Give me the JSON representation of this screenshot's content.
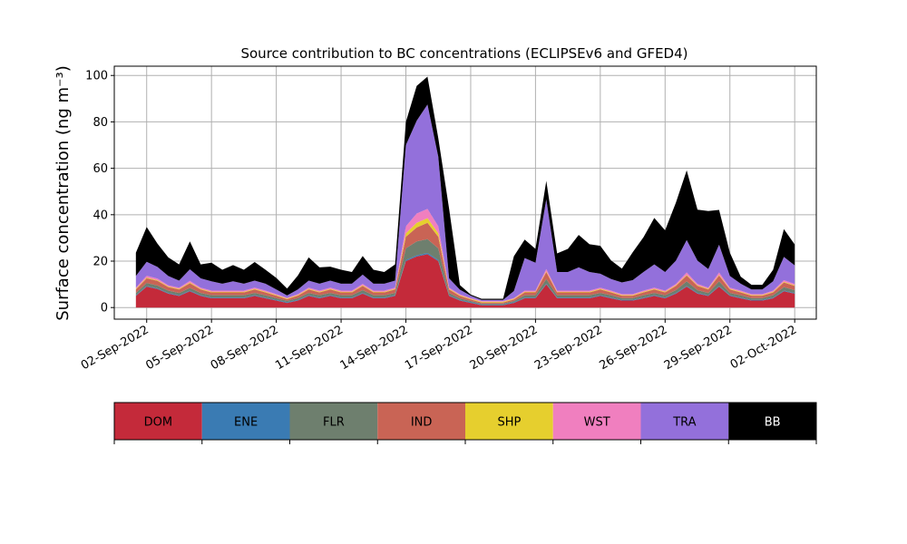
{
  "chart_data": {
    "type": "area",
    "stacked": true,
    "title": "Source contribution to BC concentrations (ECLIPSEv6 and GFED4)",
    "ylabel": "Surface concentration (ng m⁻³)",
    "xlabel": "",
    "ylim": [
      -5,
      104
    ],
    "xlim": [
      "2022-08-31T12:00",
      "2022-10-03T00:00"
    ],
    "grid": true,
    "x_tick_labels": [
      "02-Sep-2022",
      "05-Sep-2022",
      "08-Sep-2022",
      "11-Sep-2022",
      "14-Sep-2022",
      "17-Sep-2022",
      "20-Sep-2022",
      "23-Sep-2022",
      "26-Sep-2022",
      "29-Sep-2022",
      "02-Oct-2022"
    ],
    "x_ticks": [
      "2022-09-02",
      "2022-09-05",
      "2022-09-08",
      "2022-09-11",
      "2022-09-14",
      "2022-09-17",
      "2022-09-20",
      "2022-09-23",
      "2022-09-26",
      "2022-09-29",
      "2022-10-02"
    ],
    "y_ticks": [
      0,
      20,
      40,
      60,
      80,
      100
    ],
    "legend_position": "below",
    "x": [
      "2022-09-01T12:00",
      "2022-09-02T00:00",
      "2022-09-02T12:00",
      "2022-09-03T00:00",
      "2022-09-03T12:00",
      "2022-09-04T00:00",
      "2022-09-04T12:00",
      "2022-09-05T00:00",
      "2022-09-05T12:00",
      "2022-09-06T00:00",
      "2022-09-06T12:00",
      "2022-09-07T00:00",
      "2022-09-07T12:00",
      "2022-09-08T00:00",
      "2022-09-08T12:00",
      "2022-09-09T00:00",
      "2022-09-09T12:00",
      "2022-09-10T00:00",
      "2022-09-10T12:00",
      "2022-09-11T00:00",
      "2022-09-11T12:00",
      "2022-09-12T00:00",
      "2022-09-12T12:00",
      "2022-09-13T00:00",
      "2022-09-13T12:00",
      "2022-09-14T00:00",
      "2022-09-14T12:00",
      "2022-09-15T00:00",
      "2022-09-15T12:00",
      "2022-09-16T00:00",
      "2022-09-16T12:00",
      "2022-09-17T00:00",
      "2022-09-17T12:00",
      "2022-09-18T00:00",
      "2022-09-18T12:00",
      "2022-09-19T00:00",
      "2022-09-19T12:00",
      "2022-09-20T00:00",
      "2022-09-20T12:00",
      "2022-09-21T00:00",
      "2022-09-21T12:00",
      "2022-09-22T00:00",
      "2022-09-22T12:00",
      "2022-09-23T00:00",
      "2022-09-23T12:00",
      "2022-09-24T00:00",
      "2022-09-24T12:00",
      "2022-09-25T00:00",
      "2022-09-25T12:00",
      "2022-09-26T00:00",
      "2022-09-26T12:00",
      "2022-09-27T00:00",
      "2022-09-27T12:00",
      "2022-09-28T00:00",
      "2022-09-28T12:00",
      "2022-09-29T00:00",
      "2022-09-29T12:00",
      "2022-09-30T00:00",
      "2022-09-30T12:00",
      "2022-10-01T00:00",
      "2022-10-01T12:00",
      "2022-10-02T00:00"
    ],
    "series": [
      {
        "name": "DOM",
        "color": "#c42a3a",
        "values": [
          5,
          9,
          8,
          6,
          5,
          7,
          5,
          4,
          4,
          4,
          4,
          5,
          4,
          3,
          2,
          3,
          5,
          4,
          5,
          4,
          4,
          6,
          4,
          4,
          5,
          20,
          22,
          23,
          20,
          5,
          3,
          2,
          1,
          1,
          1,
          2,
          4,
          4,
          10,
          4,
          4,
          4,
          4,
          5,
          4,
          3,
          3,
          4,
          5,
          4,
          6,
          9,
          6,
          5,
          9,
          5,
          4,
          3,
          3,
          4,
          7,
          6
        ]
      },
      {
        "name": "ENE",
        "color": "#3a7bb3",
        "values": [
          0.3,
          0.3,
          0.3,
          0.3,
          0.3,
          0.3,
          0.3,
          0.3,
          0.3,
          0.3,
          0.3,
          0.3,
          0.3,
          0.3,
          0.3,
          0.3,
          0.3,
          0.3,
          0.3,
          0.3,
          0.3,
          0.3,
          0.3,
          0.3,
          0.3,
          0.5,
          0.5,
          0.5,
          0.5,
          0.3,
          0.3,
          0.3,
          0.3,
          0.3,
          0.3,
          0.3,
          0.3,
          0.3,
          0.3,
          0.3,
          0.3,
          0.3,
          0.3,
          0.3,
          0.3,
          0.3,
          0.3,
          0.3,
          0.3,
          0.3,
          0.3,
          0.3,
          0.3,
          0.3,
          0.3,
          0.3,
          0.3,
          0.3,
          0.3,
          0.3,
          0.3,
          0.3
        ]
      },
      {
        "name": "FLR",
        "color": "#6e7f6e",
        "values": [
          1,
          1.3,
          1.2,
          1,
          1,
          1.2,
          1,
          1,
          1,
          1,
          1,
          1,
          1,
          0.8,
          0.6,
          0.8,
          1,
          1,
          1,
          1,
          1,
          1.2,
          1,
          1,
          1,
          5,
          6,
          6,
          5,
          1,
          0.7,
          0.5,
          0.4,
          0.4,
          0.4,
          0.5,
          1,
          1,
          2,
          1,
          1,
          1,
          1,
          1,
          1,
          0.8,
          0.8,
          1,
          1,
          1,
          1.2,
          2,
          1.2,
          1,
          2,
          1,
          1,
          0.8,
          0.8,
          1,
          1.5,
          1.2
        ]
      },
      {
        "name": "IND",
        "color": "#c96455",
        "values": [
          1.5,
          2,
          2,
          1.5,
          1.5,
          2,
          1.5,
          1.2,
          1.2,
          1.2,
          1.2,
          1.5,
          1.2,
          1,
          0.7,
          1,
          1.5,
          1.2,
          1.5,
          1.2,
          1.2,
          1.8,
          1.2,
          1.2,
          1.5,
          5,
          6,
          7,
          5,
          1.5,
          1,
          0.7,
          0.5,
          0.5,
          0.5,
          0.7,
          1.2,
          1.2,
          3,
          1.2,
          1.2,
          1.2,
          1.2,
          1.5,
          1.2,
          1,
          1,
          1.2,
          1.5,
          1.2,
          1.8,
          2.5,
          1.8,
          1.5,
          2.5,
          1.5,
          1.2,
          1,
          1,
          1.2,
          2,
          1.8
        ]
      },
      {
        "name": "SHP",
        "color": "#e6cf2e",
        "values": [
          0.3,
          0.3,
          0.3,
          0.3,
          0.3,
          0.3,
          0.3,
          0.3,
          0.3,
          0.3,
          0.3,
          0.3,
          0.3,
          0.3,
          0.3,
          0.3,
          0.3,
          0.3,
          0.3,
          0.3,
          0.3,
          0.3,
          0.3,
          0.3,
          0.3,
          1.5,
          2,
          2,
          1.5,
          0.3,
          0.3,
          0.3,
          0.3,
          0.3,
          0.3,
          0.3,
          0.3,
          0.3,
          0.3,
          0.3,
          0.3,
          0.3,
          0.3,
          0.3,
          0.3,
          0.3,
          0.3,
          0.3,
          0.3,
          0.3,
          0.3,
          0.3,
          0.3,
          0.3,
          0.3,
          0.3,
          0.3,
          0.3,
          0.3,
          0.3,
          0.3,
          0.3
        ]
      },
      {
        "name": "WST",
        "color": "#f07fbf",
        "values": [
          0.5,
          0.8,
          0.7,
          0.5,
          0.5,
          0.7,
          0.5,
          0.5,
          0.5,
          0.5,
          0.5,
          0.5,
          0.5,
          0.4,
          0.3,
          0.4,
          0.5,
          0.5,
          0.5,
          0.5,
          0.5,
          0.6,
          0.5,
          0.5,
          0.5,
          3,
          4,
          4,
          3,
          0.5,
          0.4,
          0.3,
          0.3,
          0.3,
          0.3,
          0.3,
          0.5,
          0.5,
          1,
          0.5,
          0.5,
          0.5,
          0.5,
          0.5,
          0.5,
          0.4,
          0.4,
          0.5,
          0.5,
          0.5,
          0.6,
          1,
          0.6,
          0.5,
          1,
          0.5,
          0.5,
          0.4,
          0.4,
          0.5,
          0.7,
          0.6
        ]
      },
      {
        "name": "TRA",
        "color": "#9370db",
        "values": [
          5,
          6,
          5,
          4,
          3,
          5,
          4,
          4,
          3,
          4,
          3,
          3,
          3,
          2,
          1,
          2,
          3,
          3,
          3,
          3,
          3,
          4,
          3,
          3,
          3,
          35,
          40,
          45,
          30,
          4,
          2,
          1,
          0.5,
          0.5,
          0.5,
          3,
          14,
          12,
          30,
          8,
          8,
          10,
          8,
          6,
          5,
          5,
          6,
          8,
          10,
          8,
          10,
          14,
          10,
          8,
          12,
          5,
          3,
          2,
          2,
          4,
          10,
          8
        ]
      },
      {
        "name": "BB",
        "color": "#000000",
        "values": [
          10,
          15,
          10,
          8,
          7,
          12,
          6,
          8,
          6,
          7,
          6,
          8,
          6,
          5,
          3,
          6,
          10,
          7,
          6,
          6,
          5,
          8,
          6,
          5,
          7,
          10,
          15,
          12,
          8,
          30,
          2,
          0.5,
          0.5,
          0.5,
          0.5,
          15,
          8,
          6,
          8,
          8,
          10,
          14,
          12,
          12,
          8,
          6,
          12,
          15,
          20,
          18,
          25,
          30,
          22,
          25,
          15,
          10,
          3,
          2,
          2,
          5,
          12,
          9
        ]
      }
    ]
  }
}
